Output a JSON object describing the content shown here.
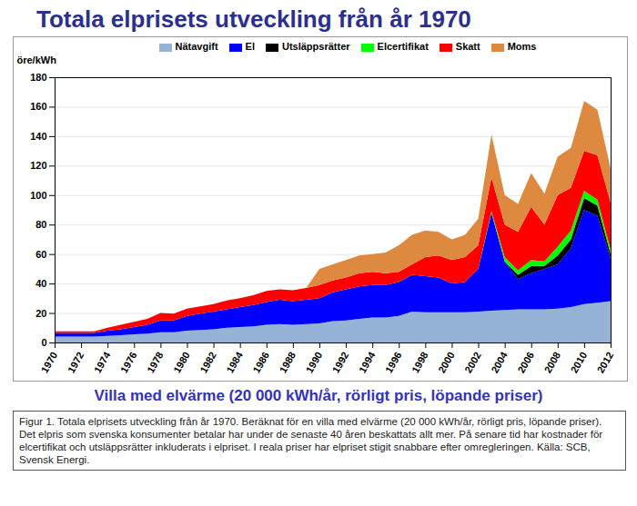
{
  "chart_data": {
    "type": "area",
    "stacked": true,
    "title": "Totala elprisets utveckling från år 1970",
    "subtitle": "Villa med elvärme (20 000 kWh/år, rörligt pris, löpande priser)",
    "caption": "Figur 1. Totala elprisets utveckling från år 1970. Beräknat för en villa med elvärme (20 000 kWh/år, rörligt pris, löpande priser). Det elpris som svenska konsumenter betalar har under de senaste 40 åren beskattats allt mer. På senare tid har kostnader för elcertifikat och utsläppsrätter inkluderats i elpriset. I reala priser har elpriset stigit snabbare efter omregleringen. Källa: SCB, Svensk Energi.",
    "y_label": "öre/kWh",
    "x": [
      1970,
      1971,
      1972,
      1973,
      1974,
      1975,
      1976,
      1977,
      1978,
      1979,
      1980,
      1981,
      1982,
      1983,
      1984,
      1985,
      1986,
      1987,
      1988,
      1989,
      1990,
      1991,
      1992,
      1993,
      1994,
      1995,
      1996,
      1997,
      1998,
      1999,
      2000,
      2001,
      2002,
      2003,
      2004,
      2005,
      2006,
      2007,
      2008,
      2009,
      2010,
      2011,
      2012
    ],
    "series": [
      {
        "name": "Nätavgift",
        "color": "#95b3d7",
        "values": [
          4,
          4,
          4,
          4,
          4.5,
          5,
          5.5,
          6,
          7,
          7,
          8,
          8.5,
          9,
          10,
          10.5,
          11,
          12,
          12.5,
          12,
          12.5,
          13,
          14.5,
          15,
          16,
          17,
          17,
          18,
          21,
          20.5,
          20.5,
          20.5,
          20.5,
          21,
          21.5,
          22,
          22.5,
          22.5,
          22.5,
          23,
          24,
          26,
          27,
          28
        ]
      },
      {
        "name": "El",
        "color": "#0000ff",
        "values": [
          2.5,
          2.5,
          2.5,
          2.5,
          3.5,
          4,
          5,
          6,
          8,
          8,
          10,
          11,
          12,
          12.5,
          13.5,
          14.5,
          15.5,
          16.5,
          16,
          16.5,
          17,
          19.5,
          21,
          22,
          22,
          22,
          23,
          25,
          24.5,
          23.5,
          19.5,
          20.5,
          29,
          66.5,
          33,
          20.5,
          24.5,
          27.5,
          30,
          40,
          64,
          59,
          29
        ]
      },
      {
        "name": "Utsläppsrätter",
        "color": "#000000",
        "values": [
          0,
          0,
          0,
          0,
          0,
          0,
          0,
          0,
          0,
          0,
          0,
          0,
          0,
          0,
          0,
          0,
          0,
          0,
          0,
          0,
          0,
          0,
          0,
          0,
          0,
          0,
          0,
          0,
          0,
          0,
          0,
          0,
          0,
          0,
          0,
          3,
          5,
          2,
          6,
          6,
          8,
          7,
          3
        ]
      },
      {
        "name": "Elcertifikat",
        "color": "#00ff00",
        "values": [
          0,
          0,
          0,
          0,
          0,
          0,
          0,
          0,
          0,
          0,
          0,
          0,
          0,
          0,
          0,
          0,
          0,
          0,
          0,
          0,
          0,
          0,
          0,
          0,
          0,
          0,
          0,
          0,
          0,
          0,
          0,
          0,
          0,
          1,
          3,
          3,
          4,
          3,
          6,
          6,
          5,
          4,
          3
        ]
      },
      {
        "name": "Skatt",
        "color": "#ff0000",
        "values": [
          1,
          1,
          1,
          1,
          2,
          3,
          3.5,
          4,
          5,
          4.5,
          5,
          5,
          5,
          6,
          6,
          6.5,
          7.5,
          7,
          7.5,
          8,
          9,
          8,
          8,
          9,
          9,
          8,
          7,
          7,
          13,
          15,
          16,
          17,
          16,
          23,
          22,
          26,
          36,
          25,
          35,
          29,
          27,
          30,
          32
        ]
      },
      {
        "name": "Moms",
        "color": "#dd8a40",
        "values": [
          0,
          0,
          0,
          0,
          0,
          0,
          0,
          0,
          0,
          0,
          0,
          0,
          0,
          0,
          0,
          0,
          0,
          0,
          0,
          0,
          11,
          11,
          12,
          12,
          12,
          14,
          18,
          20,
          18,
          16,
          14,
          15,
          18,
          29,
          20,
          19,
          23,
          21,
          26,
          27,
          34,
          31,
          23
        ]
      }
    ],
    "xlim": [
      1970,
      2012
    ],
    "xticks": [
      1970,
      1972,
      1974,
      1976,
      1978,
      1980,
      1982,
      1984,
      1986,
      1988,
      1990,
      1992,
      1994,
      1996,
      1998,
      2000,
      2002,
      2004,
      2006,
      2008,
      2010,
      2012
    ],
    "ylim": [
      0,
      180
    ],
    "yticks": [
      0,
      20,
      40,
      60,
      80,
      100,
      120,
      140,
      160,
      180
    ],
    "grid": true,
    "legend": "top"
  }
}
